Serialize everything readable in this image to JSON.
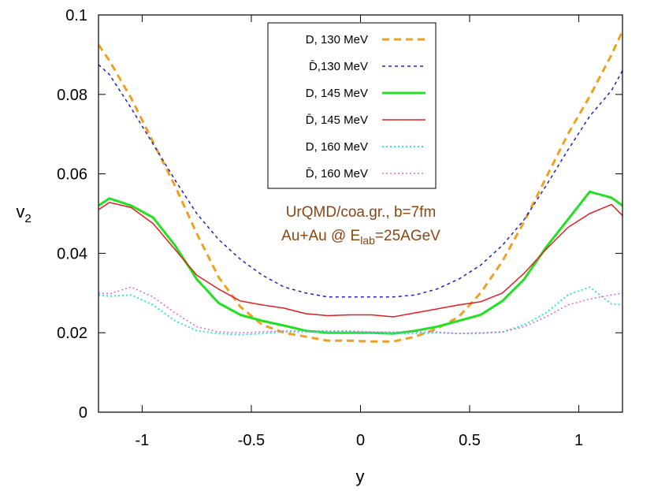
{
  "chart_data": {
    "type": "line",
    "xlabel": "y",
    "ylabel": "v",
    "ylabel_sub": "2",
    "xlim": [
      -1.2,
      1.2
    ],
    "ylim": [
      0,
      0.1
    ],
    "xticks": [
      -1,
      -0.5,
      0,
      0.5,
      1
    ],
    "xtick_labels": [
      "-1",
      "-0.5",
      "0",
      "0.5",
      "1"
    ],
    "yticks": [
      0,
      0.02,
      0.04,
      0.06,
      0.08,
      0.1
    ],
    "ytick_labels": [
      "0",
      "0.02",
      "0.04",
      "0.06",
      "0.08",
      "0.1"
    ],
    "grid": false,
    "legend_position": "top-center",
    "annotation": {
      "line1": "UrQMD/coa.gr., b=7fm",
      "line2_prefix": "Au+Au @ E",
      "line2_sub": "lab",
      "line2_suffix": "=25AGeV",
      "color": "#8b4513"
    },
    "x": [
      -1.2,
      -1.15,
      -1.05,
      -0.95,
      -0.85,
      -0.75,
      -0.65,
      -0.55,
      -0.45,
      -0.35,
      -0.25,
      -0.15,
      -0.05,
      0.05,
      0.15,
      0.25,
      0.35,
      0.45,
      0.55,
      0.65,
      0.75,
      0.85,
      0.95,
      1.05,
      1.15,
      1.2
    ],
    "series": [
      {
        "name": "D, 130 MeV",
        "color": "#f0a020",
        "dash": "dashed",
        "width": 3,
        "values": [
          0.0925,
          0.0885,
          0.079,
          0.068,
          0.057,
          0.045,
          0.034,
          0.0265,
          0.022,
          0.02,
          0.019,
          0.018,
          0.018,
          0.0178,
          0.0178,
          0.019,
          0.021,
          0.024,
          0.03,
          0.038,
          0.048,
          0.059,
          0.07,
          0.0795,
          0.09,
          0.096
        ]
      },
      {
        "name": "D̄,130 MeV",
        "color": "#2020c0",
        "dash": "short-dashed",
        "width": 1.5,
        "values": [
          0.0875,
          0.085,
          0.0765,
          0.0675,
          0.0585,
          0.05,
          0.0435,
          0.0385,
          0.0345,
          0.0315,
          0.03,
          0.029,
          0.029,
          0.029,
          0.029,
          0.0295,
          0.031,
          0.0335,
          0.037,
          0.042,
          0.0485,
          0.057,
          0.066,
          0.0745,
          0.081,
          0.086
        ]
      },
      {
        "name": "D, 145 MeV",
        "color": "#22e022",
        "dash": "solid",
        "width": 3,
        "values": [
          0.052,
          0.0538,
          0.052,
          0.049,
          0.042,
          0.0335,
          0.0275,
          0.0245,
          0.023,
          0.0218,
          0.0205,
          0.02,
          0.02,
          0.02,
          0.0198,
          0.0205,
          0.0215,
          0.023,
          0.0245,
          0.028,
          0.0335,
          0.0415,
          0.0485,
          0.0555,
          0.054,
          0.052
        ]
      },
      {
        "name": "D̄, 145 MeV",
        "color": "#e02020",
        "dash": "solid",
        "width": 1.5,
        "values": [
          0.051,
          0.0528,
          0.0515,
          0.0475,
          0.041,
          0.0345,
          0.031,
          0.028,
          0.027,
          0.0262,
          0.0248,
          0.0243,
          0.0245,
          0.0245,
          0.024,
          0.025,
          0.026,
          0.027,
          0.0278,
          0.03,
          0.035,
          0.041,
          0.0465,
          0.05,
          0.0523,
          0.0495
        ]
      },
      {
        "name": "D, 160 MeV",
        "color": "#30e0e0",
        "dash": "dotted",
        "width": 2,
        "values": [
          0.0295,
          0.0292,
          0.0295,
          0.027,
          0.023,
          0.0205,
          0.0198,
          0.0195,
          0.0198,
          0.0202,
          0.0202,
          0.0202,
          0.0202,
          0.02,
          0.0198,
          0.0198,
          0.02,
          0.0198,
          0.0198,
          0.0202,
          0.022,
          0.025,
          0.0295,
          0.0315,
          0.0272,
          0.027
        ]
      },
      {
        "name": "D̄, 160 MeV",
        "color": "#e060e0",
        "dash": "dotted",
        "width": 1.5,
        "values": [
          0.03,
          0.0298,
          0.0315,
          0.029,
          0.025,
          0.0215,
          0.0202,
          0.02,
          0.0202,
          0.0205,
          0.0205,
          0.0205,
          0.0205,
          0.0202,
          0.0202,
          0.0202,
          0.0202,
          0.0198,
          0.02,
          0.0202,
          0.0215,
          0.024,
          0.027,
          0.0285,
          0.0295,
          0.03
        ]
      }
    ]
  }
}
